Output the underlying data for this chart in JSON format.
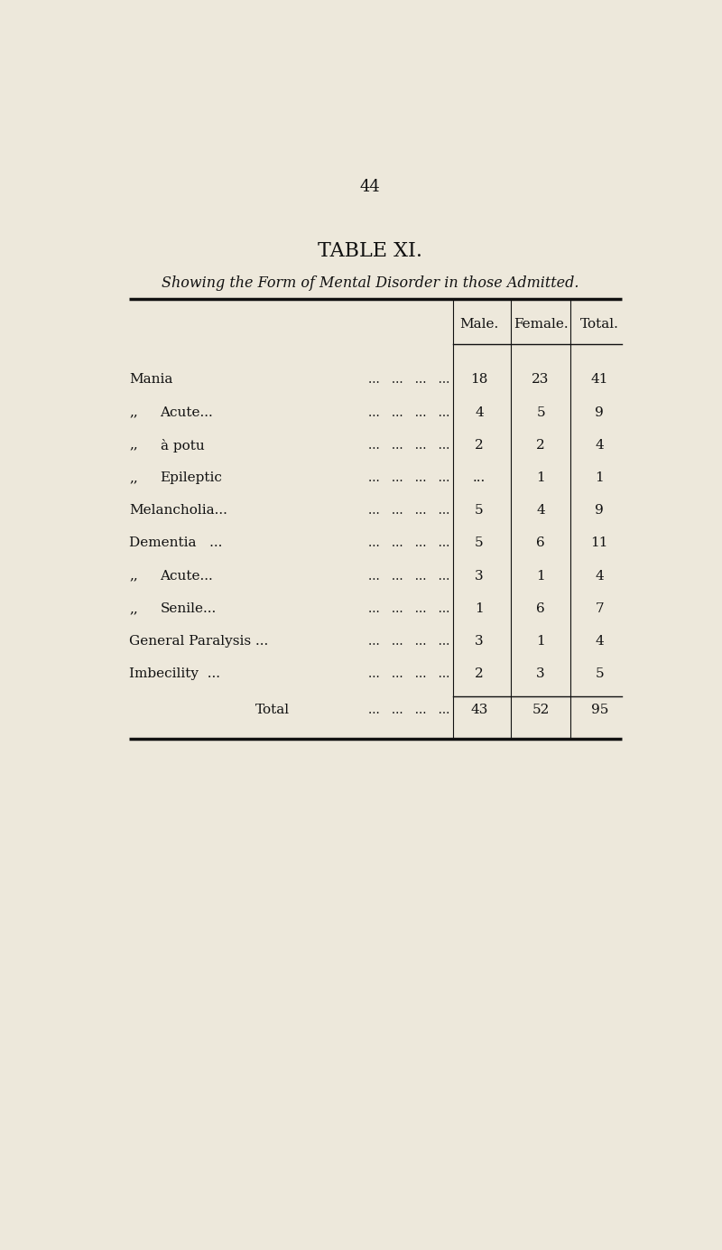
{
  "page_number": "44",
  "title": "TABLE XI.",
  "subtitle": "Showing the Form of Mental Disorder in those Admitted.",
  "col_headers": [
    "Male.",
    "Female.",
    "Total."
  ],
  "rows": [
    {
      "label": "Mania",
      "prefix": "",
      "dots": "...   ...   ...   ...",
      "male": "18",
      "female": "23",
      "total": "41"
    },
    {
      "label": "Acute...",
      "prefix": ",,",
      "dots": "...   ...   ...   ...",
      "male": "4",
      "female": "5",
      "total": "9"
    },
    {
      "label": "à potu",
      "prefix": ",,",
      "dots": "..   ..   ...",
      "male": "2",
      "female": "2",
      "total": "4"
    },
    {
      "label": "Epileptic",
      "prefix": ",,",
      "dots": "...   ...   ...   ...",
      "male": "...",
      "female": "1",
      "total": "1"
    },
    {
      "label": "Melancholia...",
      "prefix": "",
      "dots": "...   ...   ...   ...",
      "male": "5",
      "female": "4",
      "total": "9"
    },
    {
      "label": "Dementia   ...",
      "prefix": "",
      "dots": "...   ...   ...   ...",
      "male": "5",
      "female": "6",
      "total": "11"
    },
    {
      "label": "Acute...",
      "prefix": ",,",
      "dots": "...   ...   ...   ...",
      "male": "3",
      "female": "1",
      "total": "4"
    },
    {
      "label": "Senile...",
      "prefix": ",,",
      "dots": "...   ...   ...   ...",
      "male": "1",
      "female": "6",
      "total": "7"
    },
    {
      "label": "General Paralysis ...",
      "prefix": "",
      "dots": "...   ...   ...   ...",
      "male": "3",
      "female": "1",
      "total": "4"
    },
    {
      "label": "Imbecility  ...",
      "prefix": "",
      "dots": "...   ...   ...   ...",
      "male": "2",
      "female": "3",
      "total": "5"
    }
  ],
  "total_row": {
    "label": "Total",
    "dots": "...   ...   ...   ...",
    "male": "43",
    "female": "52",
    "total": "95"
  },
  "bg_color": "#ede8db",
  "text_color": "#111111",
  "line_color": "#111111"
}
